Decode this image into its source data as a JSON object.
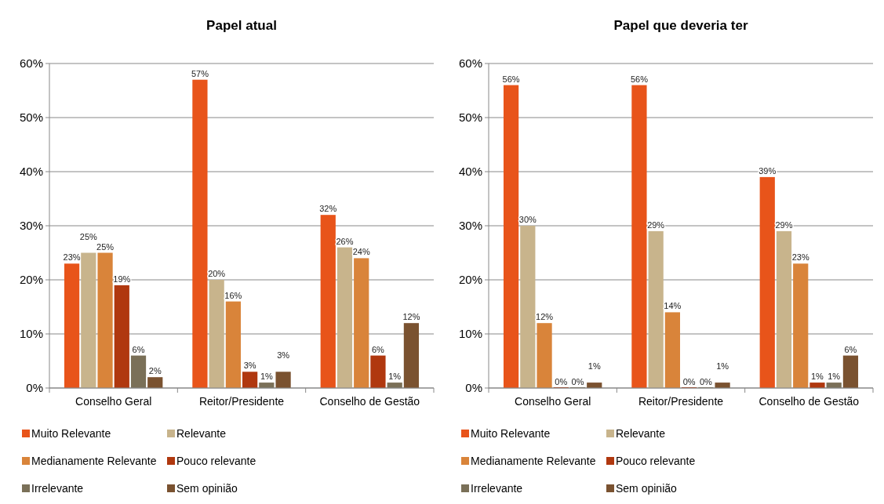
{
  "chart_data": [
    {
      "type": "bar",
      "title": "Papel atual",
      "categories": [
        "Conselho Geral",
        "Reitor/Presidente",
        "Conselho de Gestão"
      ],
      "ylim": [
        0,
        60
      ],
      "yticks": [
        {
          "value": 0,
          "label": "0%"
        },
        {
          "value": 10,
          "label": "10%"
        },
        {
          "value": 20,
          "label": "20%"
        },
        {
          "value": 30,
          "label": "30%"
        },
        {
          "value": 40,
          "label": "40%"
        },
        {
          "value": 50,
          "label": "50%"
        },
        {
          "value": 60,
          "label": "60%"
        }
      ],
      "grid": "y",
      "legend": "bottom",
      "series": [
        {
          "name": "Muito Relevante",
          "color": "#e8541a",
          "values": [
            23,
            57,
            32
          ],
          "value_labels": [
            "23%",
            "57%",
            "32%"
          ]
        },
        {
          "name": "Relevante",
          "color": "#c8b48c",
          "values": [
            25,
            20,
            26
          ],
          "value_labels": [
            "25%",
            "20%",
            "26%"
          ]
        },
        {
          "name": "Medianamente Relevante",
          "color": "#d9843a",
          "values": [
            25,
            16,
            24
          ],
          "value_labels": [
            "25%",
            "16%",
            "24%"
          ]
        },
        {
          "name": "Pouco relevante",
          "color": "#b0380f",
          "values": [
            19,
            3,
            6
          ],
          "value_labels": [
            "19%",
            "3%",
            "6%"
          ]
        },
        {
          "name": "Irrelevante",
          "color": "#7a7058",
          "values": [
            6,
            1,
            1
          ],
          "value_labels": [
            "6%",
            "1%",
            "1%"
          ]
        },
        {
          "name": "Sem opinião",
          "color": "#7a5230",
          "values": [
            2,
            3,
            12
          ],
          "value_labels": [
            "2%",
            "3%",
            "12%"
          ]
        }
      ]
    },
    {
      "type": "bar",
      "title": "Papel que deveria ter",
      "categories": [
        "Conselho Geral",
        "Reitor/Presidente",
        "Conselho de Gestão"
      ],
      "ylim": [
        0,
        60
      ],
      "yticks": [
        {
          "value": 0,
          "label": "0%"
        },
        {
          "value": 10,
          "label": "10%"
        },
        {
          "value": 20,
          "label": "20%"
        },
        {
          "value": 30,
          "label": "30%"
        },
        {
          "value": 40,
          "label": "40%"
        },
        {
          "value": 50,
          "label": "50%"
        },
        {
          "value": 60,
          "label": "60%"
        }
      ],
      "grid": "y",
      "legend": "bottom",
      "series": [
        {
          "name": "Muito Relevante",
          "color": "#e8541a",
          "values": [
            56,
            56,
            39
          ],
          "value_labels": [
            "56%",
            "56%",
            "39%"
          ]
        },
        {
          "name": "Relevante",
          "color": "#c8b48c",
          "values": [
            30,
            29,
            29
          ],
          "value_labels": [
            "30%",
            "29%",
            "29%"
          ]
        },
        {
          "name": "Medianamente Relevante",
          "color": "#d9843a",
          "values": [
            12,
            14,
            23
          ],
          "value_labels": [
            "12%",
            "14%",
            "23%"
          ]
        },
        {
          "name": "Pouco relevante",
          "color": "#b0380f",
          "values": [
            0,
            0,
            1
          ],
          "value_labels": [
            "0%",
            "0%",
            "1%"
          ]
        },
        {
          "name": "Irrelevante",
          "color": "#7a7058",
          "values": [
            0,
            0,
            1
          ],
          "value_labels": [
            "0%",
            "0%",
            "1%"
          ]
        },
        {
          "name": "Sem opinião",
          "color": "#7a5230",
          "values": [
            1,
            1,
            6
          ],
          "value_labels": [
            "1%",
            "1%",
            "6%"
          ]
        }
      ]
    }
  ]
}
